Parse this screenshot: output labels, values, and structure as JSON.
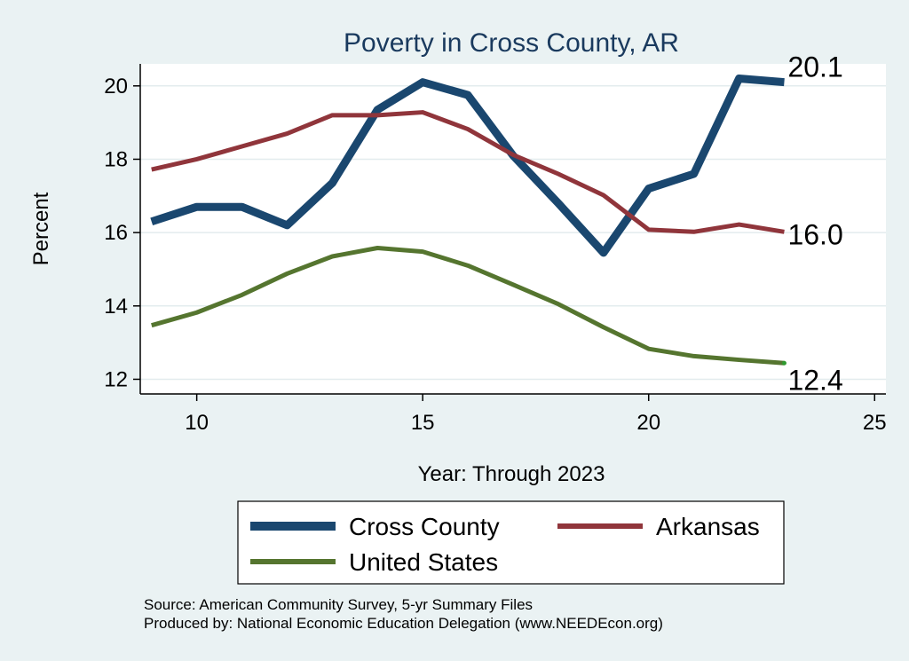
{
  "chart_data": {
    "type": "line",
    "title": "Poverty in Cross County, AR",
    "xlabel": "Year: Through 2023",
    "ylabel": "Percent",
    "xlim": [
      8.75,
      25.25
    ],
    "ylim": [
      11.6,
      20.6
    ],
    "xticks": [
      10,
      15,
      20,
      25
    ],
    "yticks": [
      12,
      14,
      16,
      18,
      20
    ],
    "grid": true,
    "legend_position": "bottom",
    "x": [
      9,
      10,
      11,
      12,
      13,
      14,
      15,
      16,
      17,
      18,
      19,
      20,
      21,
      22,
      23
    ],
    "series": [
      {
        "name": "Cross County",
        "color": "#1a476f",
        "values": [
          16.3,
          16.7,
          16.7,
          16.2,
          17.35,
          19.35,
          20.1,
          19.75,
          18.1,
          16.8,
          15.45,
          17.2,
          17.6,
          20.2,
          20.1
        ],
        "end_label": "20.1"
      },
      {
        "name": "Arkansas",
        "color": "#90353b",
        "values": [
          17.72,
          18.0,
          18.35,
          18.7,
          19.2,
          19.2,
          19.28,
          18.82,
          18.12,
          17.6,
          17.02,
          16.08,
          16.02,
          16.22,
          16.02
        ],
        "end_label": "16.0"
      },
      {
        "name": "United States",
        "color": "#55752f",
        "values": [
          13.47,
          13.82,
          14.3,
          14.88,
          15.35,
          15.58,
          15.48,
          15.1,
          14.58,
          14.05,
          13.42,
          12.83,
          12.63,
          12.53,
          12.44
        ],
        "end_label": "12.4"
      }
    ]
  },
  "notes": {
    "source": "Source: American Community Survey, 5-yr Summary Files",
    "produced_by": "Produced by: National Economic Education Delegation (www.NEEDEcon.org)"
  }
}
